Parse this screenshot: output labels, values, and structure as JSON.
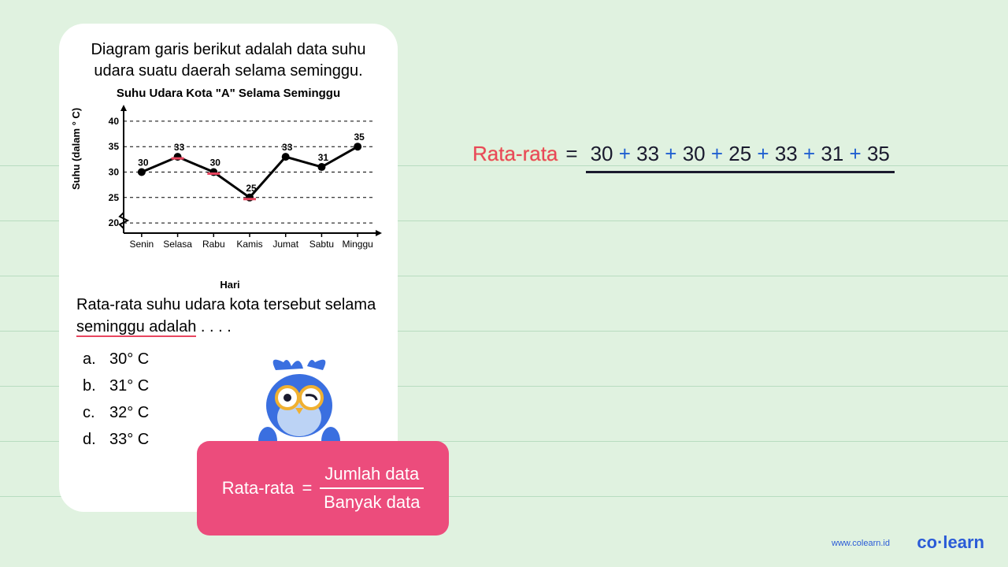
{
  "background": {
    "color": "#e0f2e0",
    "line_color": "#b8dcc0",
    "line_y_positions": [
      210,
      280,
      350,
      420,
      490,
      560,
      630
    ]
  },
  "question": {
    "intro_line1": "Diagram garis berikut adalah data suhu",
    "intro_line2": "udara suatu daerah selama seminggu.",
    "chart": {
      "type": "line",
      "title": "Suhu Udara Kota \"A\" Selama Seminggu",
      "y_label": "Suhu (dalam ° C)",
      "x_label": "Hari",
      "y_ticks": [
        20,
        25,
        30,
        35,
        40
      ],
      "ylim": [
        18,
        42
      ],
      "categories": [
        "Senin",
        "Selasa",
        "Rabu",
        "Kamis",
        "Jumat",
        "Sabtu",
        "Minggu"
      ],
      "values": [
        30,
        33,
        30,
        25,
        33,
        31,
        35
      ],
      "point_color": "#000000",
      "line_color": "#000000",
      "line_width": 3,
      "marker_radius": 5,
      "grid_dash": "4,4",
      "grid_color": "#000000",
      "highlight_color": "#e8455f",
      "highlight_indices": [
        1,
        2,
        3
      ],
      "axis_fontsize": 12,
      "value_label_fontsize": 12
    },
    "prompt_part1": "Rata-rata suhu udara kota tersebut selama",
    "prompt_part2": "seminggu adalah",
    "prompt_dots": " . . . .",
    "options": [
      {
        "letter": "a.",
        "text": "30° C"
      },
      {
        "letter": "b.",
        "text": "31° C"
      },
      {
        "letter": "c.",
        "text": "32° C"
      },
      {
        "letter": "d.",
        "text": "33° C"
      }
    ]
  },
  "formula_card": {
    "bg_color": "#ec4c7c",
    "label": "Rata-rata",
    "eq": "=",
    "numerator": "Jumlah data",
    "denominator": "Banyak data"
  },
  "work": {
    "label": "Rata-rata",
    "eq": "=",
    "addends": [
      "30",
      "33",
      "30",
      "25",
      "33",
      "31",
      "35"
    ],
    "plus": "+"
  },
  "brand": {
    "url": "www.colearn.id",
    "logo_co": "co",
    "logo_dot": "·",
    "logo_learn": "learn"
  }
}
